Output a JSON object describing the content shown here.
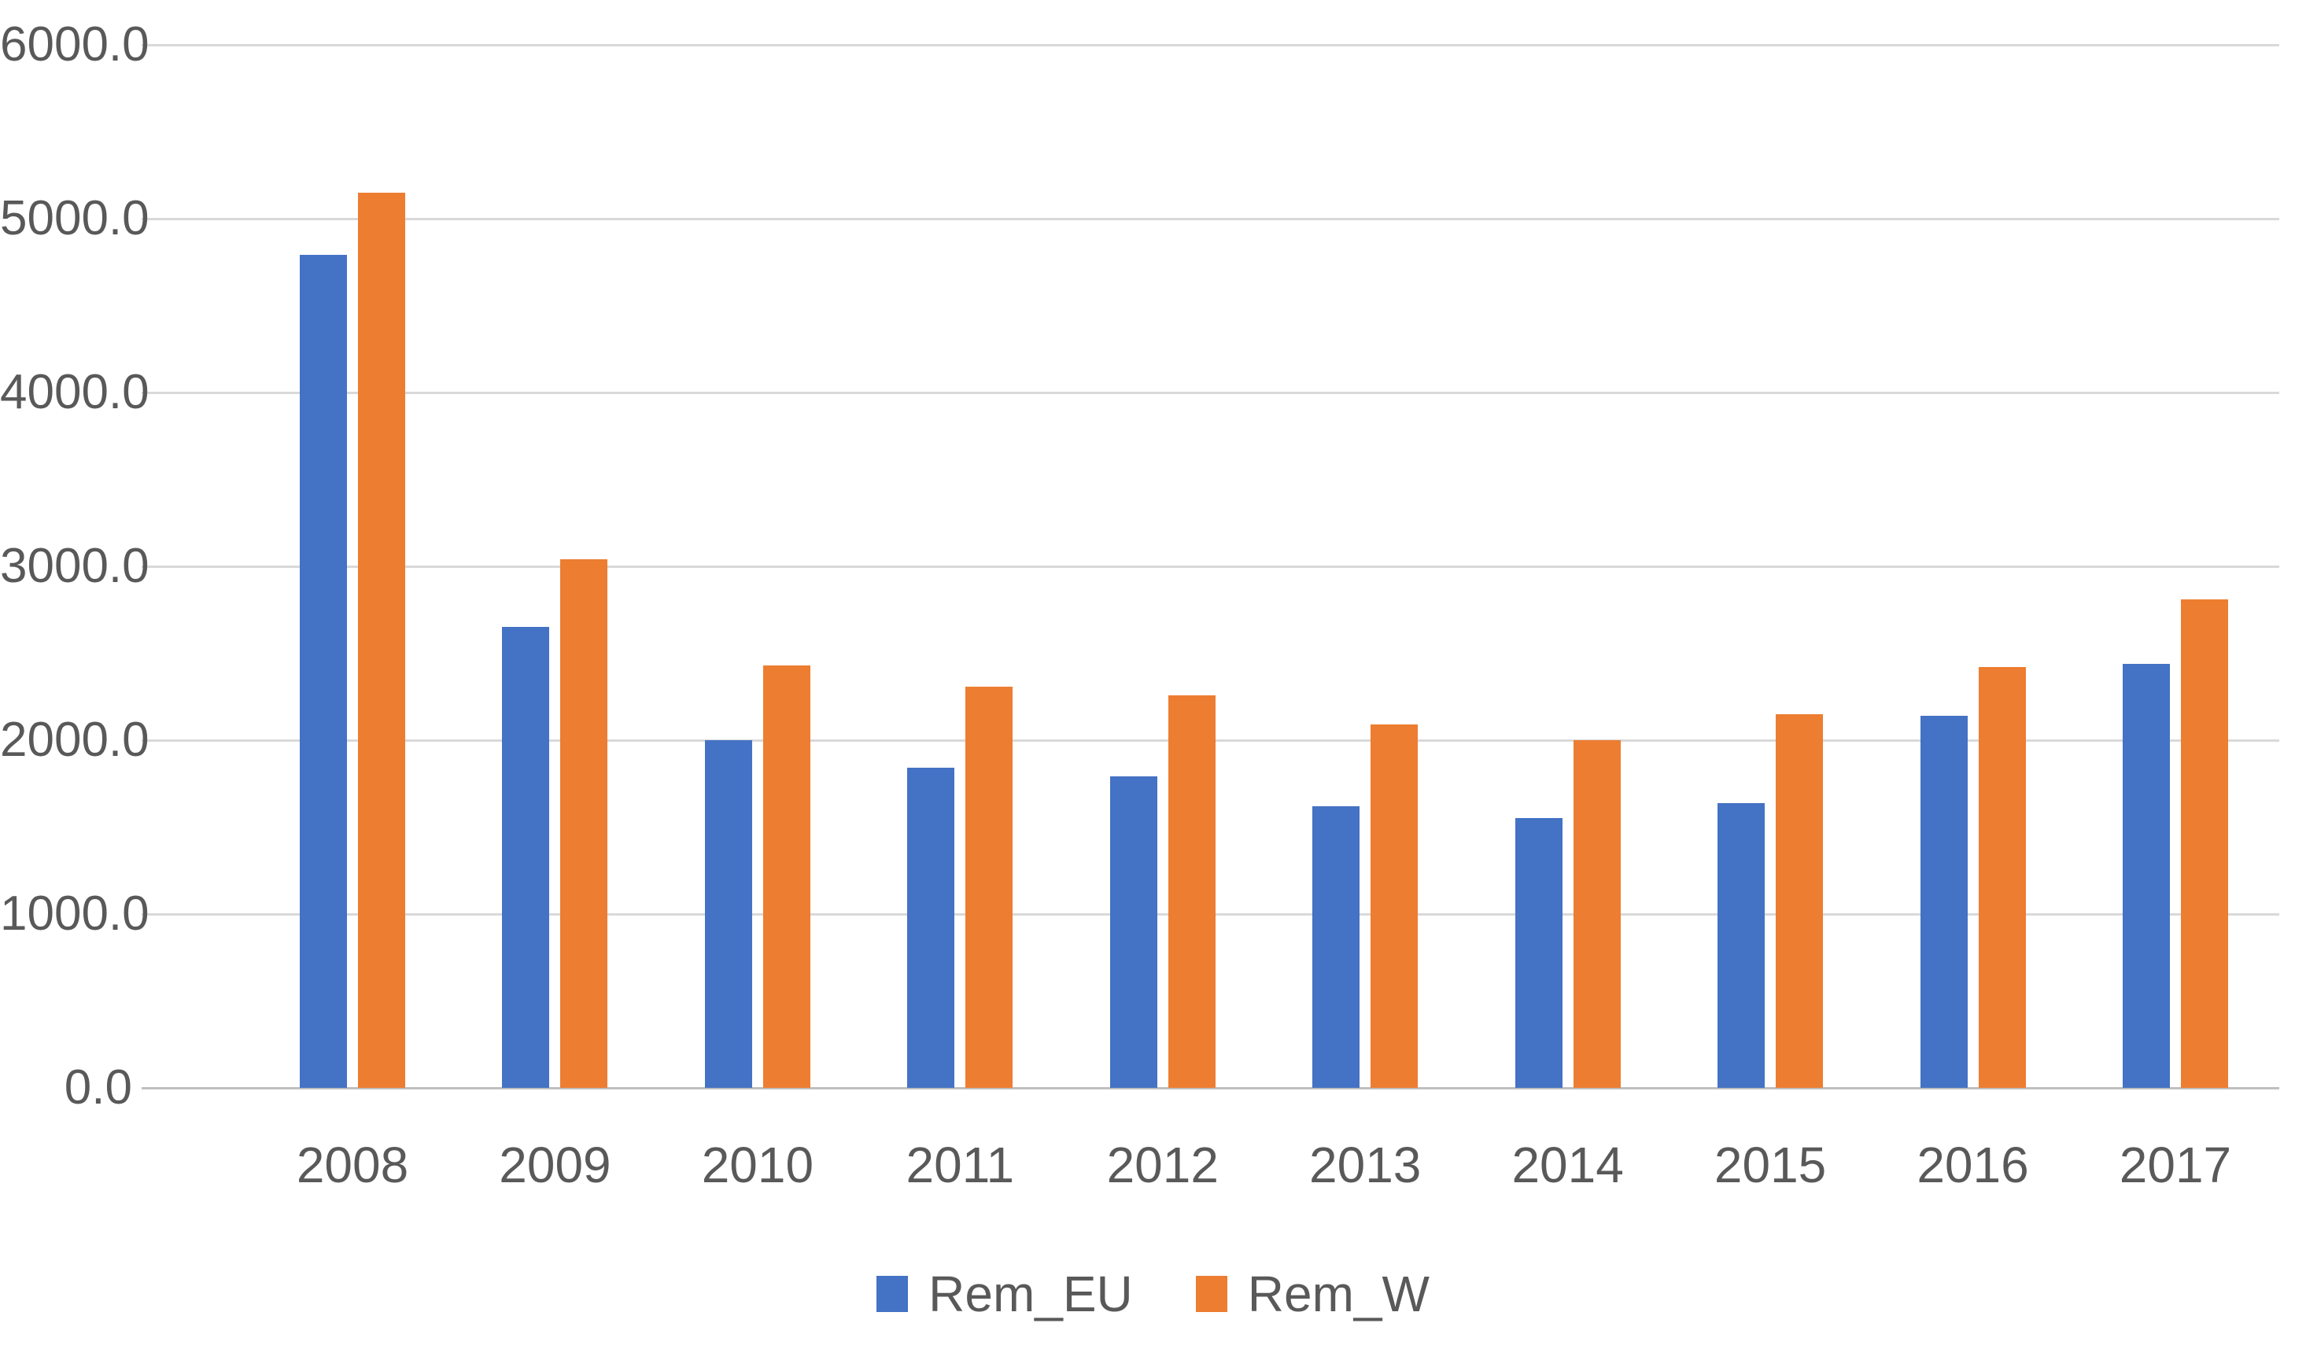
{
  "chart_data": {
    "type": "bar",
    "title": "",
    "xlabel": "",
    "ylabel": "",
    "categories": [
      "2008",
      "2009",
      "2010",
      "2011",
      "2012",
      "2013",
      "2014",
      "2015",
      "2016",
      "2017"
    ],
    "series": [
      {
        "name": "Rem_EU",
        "color": "#4472C4",
        "values": [
          4790,
          2650,
          2000,
          1840,
          1790,
          1620,
          1550,
          1640,
          2140,
          2440
        ]
      },
      {
        "name": "Rem_W",
        "color": "#ED7D31",
        "values": [
          5150,
          3040,
          2430,
          2310,
          2260,
          2090,
          2000,
          2150,
          2420,
          2810
        ]
      }
    ],
    "ylim": [
      0,
      6000
    ],
    "ytick_step": 1000,
    "ytick_labels_top_to_bottom": [
      "6000.0",
      "5000.0",
      "4000.0",
      "3000.0",
      "2000.0",
      "1000.0",
      "0.0"
    ],
    "grid": "horizontal",
    "legend_position": "bottom-center"
  },
  "colors": {
    "background": "#FFFFFF",
    "gridline": "#D9D9D9",
    "axis_line": "#BFBFBF",
    "tick_text": "#595959",
    "series_blue": "#4472C4",
    "series_orange": "#ED7D31"
  }
}
